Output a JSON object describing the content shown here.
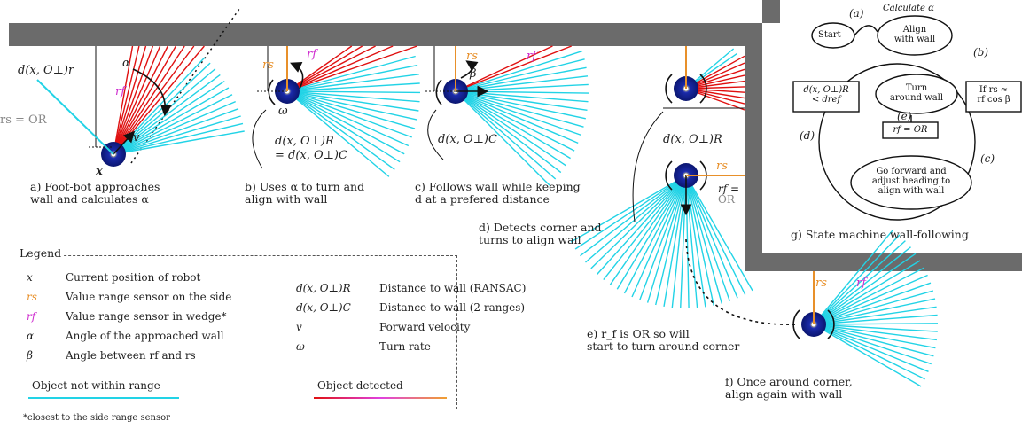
{
  "panel_captions": {
    "a": [
      "a) Foot-bot approaches",
      "wall and calculates α"
    ],
    "b": [
      "b) Uses α to turn and",
      "align with wall"
    ],
    "c": [
      "c) Follows wall while keeping",
      "d at a prefered distance"
    ],
    "d": [
      "d) Detects corner and",
      "turns to align wall"
    ],
    "e": [
      "e) r_f is OR so will",
      "start to turn around corner"
    ],
    "f": [
      "f) Once around corner,",
      "align again with wall"
    ],
    "g": [
      "g) State machine wall-following"
    ]
  },
  "panel_labels": {
    "a_dist": "d(x, O⊥)r",
    "a_rs": "rs = OR",
    "a_alpha": "α",
    "a_rf": "rf",
    "a_v": "v",
    "a_x": "x",
    "b_rs": "rs",
    "b_rf": "rf",
    "b_omega": "ω",
    "b_eq1": "d(x, O⊥)R",
    "b_eq2": "= d(x, O⊥)C",
    "c_rs": "rs",
    "c_rf": "rf",
    "c_beta": "β",
    "c_dist": "d(x, O⊥)C",
    "d_dist": "d(x, O⊥)R",
    "d_rs": "rs",
    "d_rf_or": "rf =",
    "d_or": "OR",
    "f_rs": "rs",
    "f_rf": "rf"
  },
  "state_machine": {
    "calc": "Calculate α",
    "start": "Start",
    "align": [
      "Align",
      "with wall"
    ],
    "turn": [
      "Turn",
      "around wall"
    ],
    "forward": [
      "Go forward and",
      "adjust heading to",
      "align with wall"
    ],
    "cond_b": [
      "If rs ≈",
      "rf cos β"
    ],
    "cond_d": [
      "d(x, O⊥)R",
      "< dref"
    ],
    "cond_e": "rf = OR",
    "edge_a": "(a)",
    "edge_b": "(b)",
    "edge_c": "(c)",
    "edge_d": "(d)",
    "edge_e": "(e)"
  },
  "legend": {
    "title": "Legend",
    "items_left": [
      {
        "sym": "x",
        "text": "Current position of robot"
      },
      {
        "sym": "rs",
        "text": "Value range sensor on the side"
      },
      {
        "sym": "rf",
        "text": "Value range sensor in wedge*"
      },
      {
        "sym": "α",
        "text": "Angle of the approached wall"
      },
      {
        "sym": "β",
        "text": "Angle between rf and rs"
      }
    ],
    "items_right": [
      {
        "sym": "d(x, O⊥)R",
        "text": "Distance to wall (RANSAC)"
      },
      {
        "sym": "d(x, O⊥)C",
        "text": "Distance to wall (2 ranges)"
      },
      {
        "sym": "v",
        "text": "Forward velocity"
      },
      {
        "sym": "ω",
        "text": "Turn rate"
      }
    ],
    "not_in_range": "Object not within range",
    "detected": "Object detected",
    "footnote": "*closest to the side range sensor"
  },
  "colors": {
    "wall": "#6b6b6b",
    "ray_free": "#22d3e6",
    "ray_hit_start": "#e01010",
    "ray_hit_mid": "#e040e0",
    "ray_hit_end": "#f0a030",
    "robot": "#1a2aa8",
    "rs": "#e8902a",
    "rf": "#d030d0"
  }
}
